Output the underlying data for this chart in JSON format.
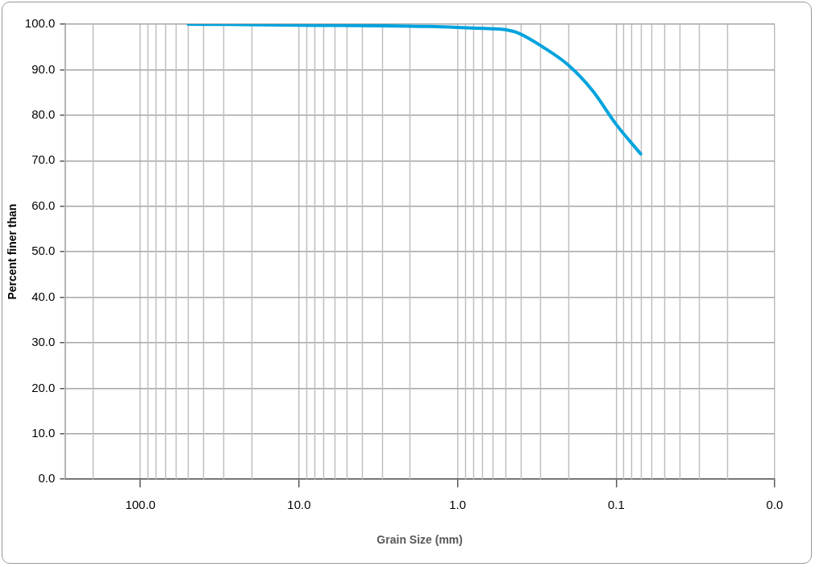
{
  "chart_data": {
    "type": "line",
    "xlabel": "Grain Size (mm)",
    "ylabel": "Percent finer than",
    "log": "x",
    "grid": true,
    "legend": false,
    "marker": "none",
    "line_style": "solid",
    "xlim": [
      300,
      0.01
    ],
    "xticks": [
      {
        "value": 100,
        "label": "100.0"
      },
      {
        "value": 10,
        "label": "10.0"
      },
      {
        "value": 1,
        "label": "1.0"
      },
      {
        "value": 0.1,
        "label": "0.1"
      },
      {
        "value": 0.01,
        "label": "0.0"
      }
    ],
    "ylim": [
      0,
      100
    ],
    "yticks": [
      {
        "value": 0,
        "label": "0.0"
      },
      {
        "value": 10,
        "label": "10.0"
      },
      {
        "value": 20,
        "label": "20.0"
      },
      {
        "value": 30,
        "label": "30.0"
      },
      {
        "value": 40,
        "label": "40.0"
      },
      {
        "value": 50,
        "label": "50.0"
      },
      {
        "value": 60,
        "label": "60.0"
      },
      {
        "value": 70,
        "label": "70.0"
      },
      {
        "value": 80,
        "label": "80.0"
      },
      {
        "value": 90,
        "label": "90.0"
      },
      {
        "value": 100,
        "label": "100.0"
      }
    ],
    "series": [
      {
        "color": "#00a3dd",
        "x": [
          50,
          10,
          1.5,
          1,
          0.75,
          0.6,
          0.5,
          0.41,
          0.29,
          0.2,
          0.14,
          0.1,
          0.07
        ],
        "values": [
          100,
          99.8,
          99.5,
          99.3,
          99.1,
          99,
          98.8,
          98,
          95,
          91,
          85.3,
          78,
          71.5
        ]
      }
    ]
  }
}
